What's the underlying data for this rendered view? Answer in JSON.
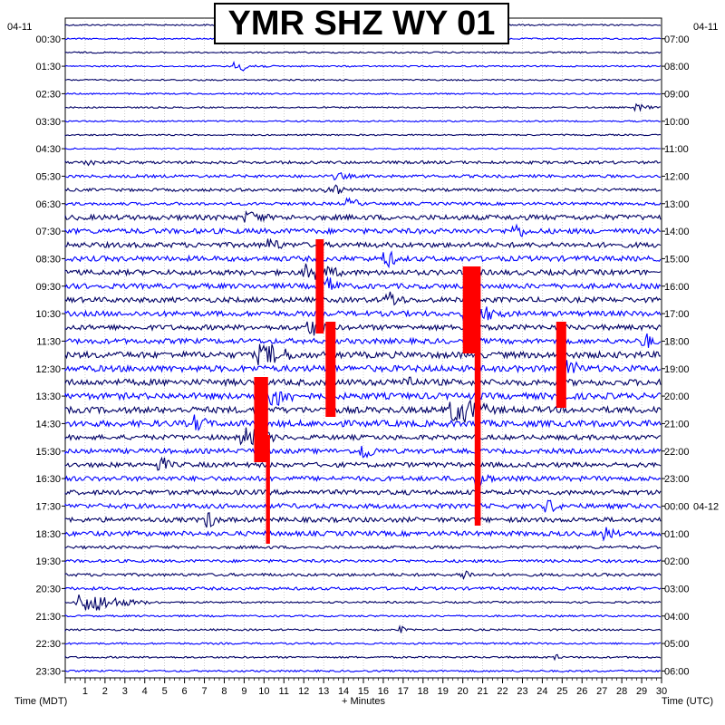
{
  "title": "YMR SHZ WY 01",
  "left_date": "04-11",
  "right_date": "04-11",
  "right_date2": "04-12",
  "left_axis_label": "Time (MDT)",
  "right_axis_label": "Time (UTC)",
  "x_axis_label": "+ Minutes",
  "colors": {
    "trace_dark": "#000066",
    "trace_blue": "#0000ff",
    "clip_red": "#ff0000",
    "grid": "#999999"
  },
  "chart_data": {
    "type": "line",
    "x_ticks": [
      1,
      2,
      3,
      4,
      5,
      6,
      7,
      8,
      9,
      10,
      11,
      12,
      13,
      14,
      15,
      16,
      17,
      18,
      19,
      20,
      21,
      22,
      23,
      24,
      25,
      26,
      27,
      28,
      29,
      30
    ],
    "xlim": [
      0,
      30
    ],
    "rows": 48,
    "left_ticks": [
      "00:30",
      "01:30",
      "02:30",
      "03:30",
      "04:30",
      "05:30",
      "06:30",
      "07:30",
      "08:30",
      "09:30",
      "10:30",
      "11:30",
      "12:30",
      "13:30",
      "14:30",
      "15:30",
      "16:30",
      "17:30",
      "18:30",
      "19:30",
      "20:30",
      "21:30",
      "22:30",
      "23:30"
    ],
    "right_ticks": [
      "07:00",
      "08:00",
      "09:00",
      "10:00",
      "11:00",
      "12:00",
      "13:00",
      "14:00",
      "15:00",
      "16:00",
      "17:00",
      "18:00",
      "19:00",
      "20:00",
      "21:00",
      "22:00",
      "23:00",
      "00:00",
      "01:00",
      "02:00",
      "03:00",
      "04:00",
      "05:00",
      "06:00"
    ],
    "right_date_change_tick": "00:00"
  }
}
